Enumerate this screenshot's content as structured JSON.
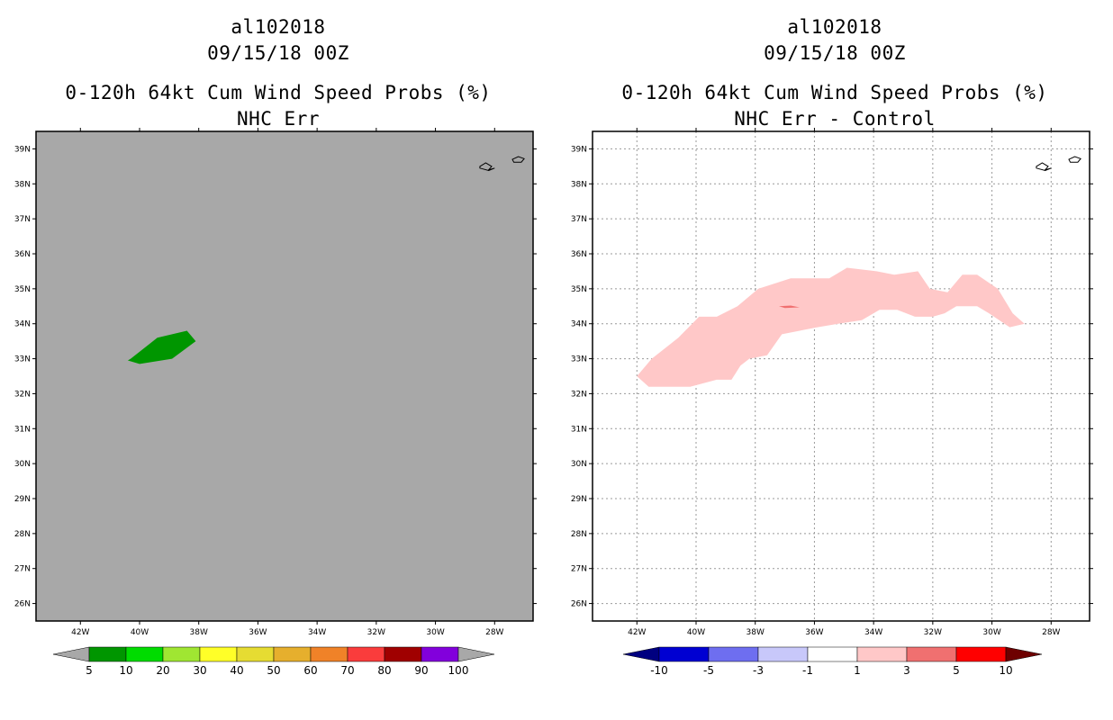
{
  "left_panel": {
    "title_line1": "al102018",
    "title_line2": "09/15/18 00Z",
    "title_line3": "0-120h 64kt Cum Wind Speed Probs (%)",
    "title_line4": "NHC Err",
    "map_background": "#a8a8a8",
    "colorbar": {
      "labels": [
        "5",
        "10",
        "20",
        "30",
        "40",
        "50",
        "60",
        "70",
        "80",
        "90",
        "100"
      ],
      "colors": [
        "#009600",
        "#00dc00",
        "#a0e632",
        "#ffff28",
        "#e6dc32",
        "#e6af2d",
        "#f08228",
        "#fa3c3c",
        "#a00000",
        "#8200dc"
      ],
      "end_color": "#a8a8a8"
    }
  },
  "right_panel": {
    "title_line1": "al102018",
    "title_line2": "09/15/18 00Z",
    "title_line3": "0-120h 64kt Cum Wind Speed Probs (%)",
    "title_line4": "NHC Err - Control",
    "map_background": "#ffffff",
    "colorbar": {
      "labels": [
        "-10",
        "-5",
        "-3",
        "-1",
        "1",
        "3",
        "5",
        "10"
      ],
      "colors": [
        "#0000d2",
        "#6e6ef0",
        "#c8c8fa",
        "#ffffff",
        "#ffc8c8",
        "#f07070",
        "#ff0000"
      ],
      "end_low": "#000080",
      "end_high": "#6e0000"
    }
  },
  "map_axes": {
    "lat_labels": [
      "39N",
      "38N",
      "37N",
      "36N",
      "35N",
      "34N",
      "33N",
      "32N",
      "31N",
      "30N",
      "29N",
      "28N",
      "27N",
      "26N"
    ],
    "lat_values": [
      39,
      38,
      37,
      36,
      35,
      34,
      33,
      32,
      31,
      30,
      29,
      28,
      27,
      26
    ],
    "lon_labels": [
      "42W",
      "40W",
      "38W",
      "36W",
      "34W",
      "32W",
      "30W",
      "28W"
    ],
    "lon_values": [
      -42,
      -40,
      -38,
      -36,
      -34,
      -32,
      -30,
      -28
    ],
    "lat_range": [
      25.5,
      39.5
    ],
    "lon_range": [
      -43.5,
      -26.7
    ]
  },
  "features": {
    "left_green_region": {
      "color": "#009600",
      "lonlat": [
        [
          -40.3,
          33.0
        ],
        [
          -39.4,
          33.6
        ],
        [
          -38.4,
          33.8
        ],
        [
          -38.1,
          33.5
        ],
        [
          -38.9,
          33.0
        ],
        [
          -40.0,
          32.85
        ],
        [
          -40.4,
          32.95
        ]
      ]
    },
    "right_pink_region": {
      "color": "#ffc8c8",
      "lonlat": [
        [
          -42.0,
          32.5
        ],
        [
          -41.5,
          33.0
        ],
        [
          -40.6,
          33.6
        ],
        [
          -39.9,
          34.2
        ],
        [
          -39.3,
          34.2
        ],
        [
          -38.6,
          34.5
        ],
        [
          -37.9,
          35.0
        ],
        [
          -36.8,
          35.3
        ],
        [
          -35.5,
          35.3
        ],
        [
          -34.9,
          35.6
        ],
        [
          -33.9,
          35.5
        ],
        [
          -33.3,
          35.4
        ],
        [
          -32.5,
          35.5
        ],
        [
          -32.1,
          35.0
        ],
        [
          -31.5,
          34.9
        ],
        [
          -31.0,
          35.4
        ],
        [
          -30.5,
          35.4
        ],
        [
          -29.8,
          35.0
        ],
        [
          -29.3,
          34.3
        ],
        [
          -28.9,
          34.0
        ],
        [
          -29.4,
          33.9
        ],
        [
          -30.1,
          34.3
        ],
        [
          -30.5,
          34.5
        ],
        [
          -31.2,
          34.5
        ],
        [
          -31.6,
          34.3
        ],
        [
          -32.0,
          34.2
        ],
        [
          -32.6,
          34.2
        ],
        [
          -33.2,
          34.4
        ],
        [
          -33.8,
          34.4
        ],
        [
          -34.4,
          34.1
        ],
        [
          -35.2,
          34.0
        ],
        [
          -35.9,
          33.9
        ],
        [
          -36.5,
          33.8
        ],
        [
          -37.1,
          33.7
        ],
        [
          -37.6,
          33.1
        ],
        [
          -38.2,
          33.0
        ],
        [
          -38.5,
          32.8
        ],
        [
          -38.8,
          32.4
        ],
        [
          -39.3,
          32.4
        ],
        [
          -40.2,
          32.2
        ],
        [
          -41.6,
          32.2
        ]
      ]
    },
    "right_red_sliver": {
      "color": "#f07070",
      "lonlat": [
        [
          -37.2,
          34.5
        ],
        [
          -36.8,
          34.52
        ],
        [
          -36.5,
          34.47
        ],
        [
          -37.0,
          34.45
        ]
      ]
    },
    "islands": {
      "outline_color": "#000000",
      "lonlat_shapes": [
        [
          [
            -28.5,
            38.5
          ],
          [
            -28.3,
            38.6
          ],
          [
            -28.1,
            38.5
          ],
          [
            -28.2,
            38.4
          ],
          [
            -28.0,
            38.45
          ],
          [
            -28.2,
            38.38
          ],
          [
            -28.5,
            38.45
          ]
        ],
        [
          [
            -27.4,
            38.7
          ],
          [
            -27.2,
            38.78
          ],
          [
            -27.0,
            38.72
          ],
          [
            -27.1,
            38.62
          ],
          [
            -27.35,
            38.62
          ]
        ]
      ]
    }
  }
}
